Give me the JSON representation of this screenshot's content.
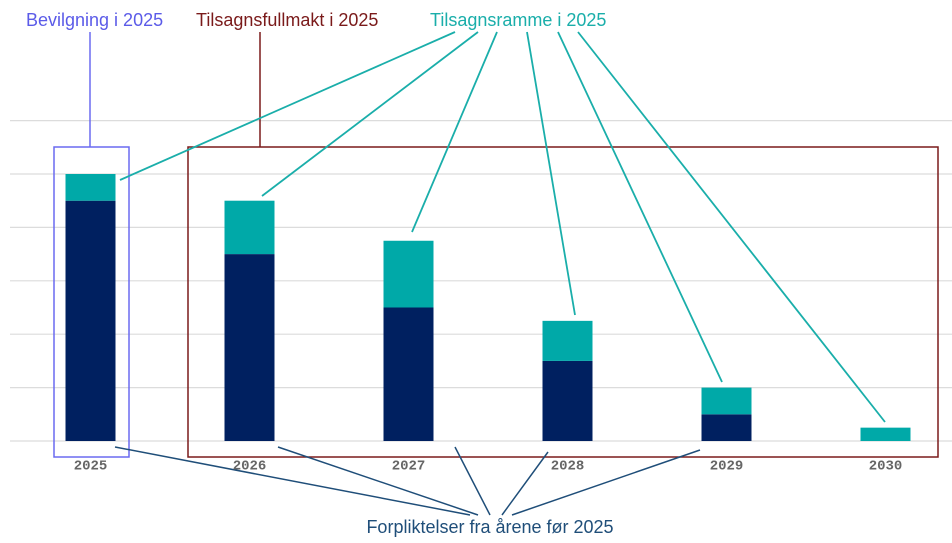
{
  "chart_data": {
    "type": "stacked_bar",
    "annotations": [
      "Bevilgning i 2025",
      "Tilsagnsfullmakt i 2025"
    ],
    "categories": [
      "2025",
      "2026",
      "2027",
      "2028",
      "2029",
      "2030"
    ],
    "series": [
      {
        "name": "Forpliktelser fra årene før 2025",
        "color": "#002060",
        "values": [
          4.5,
          3.5,
          2.5,
          1.5,
          0.5,
          0
        ]
      },
      {
        "name": "Tilsagnsramme i 2025",
        "color": "#00a9a8",
        "values": [
          0.5,
          1,
          1.25,
          0.75,
          0.5,
          0.25
        ]
      }
    ],
    "ylim": [
      0,
      6
    ],
    "yticks": [
      0,
      1,
      2,
      3,
      4,
      5,
      6
    ],
    "grid": true
  }
}
